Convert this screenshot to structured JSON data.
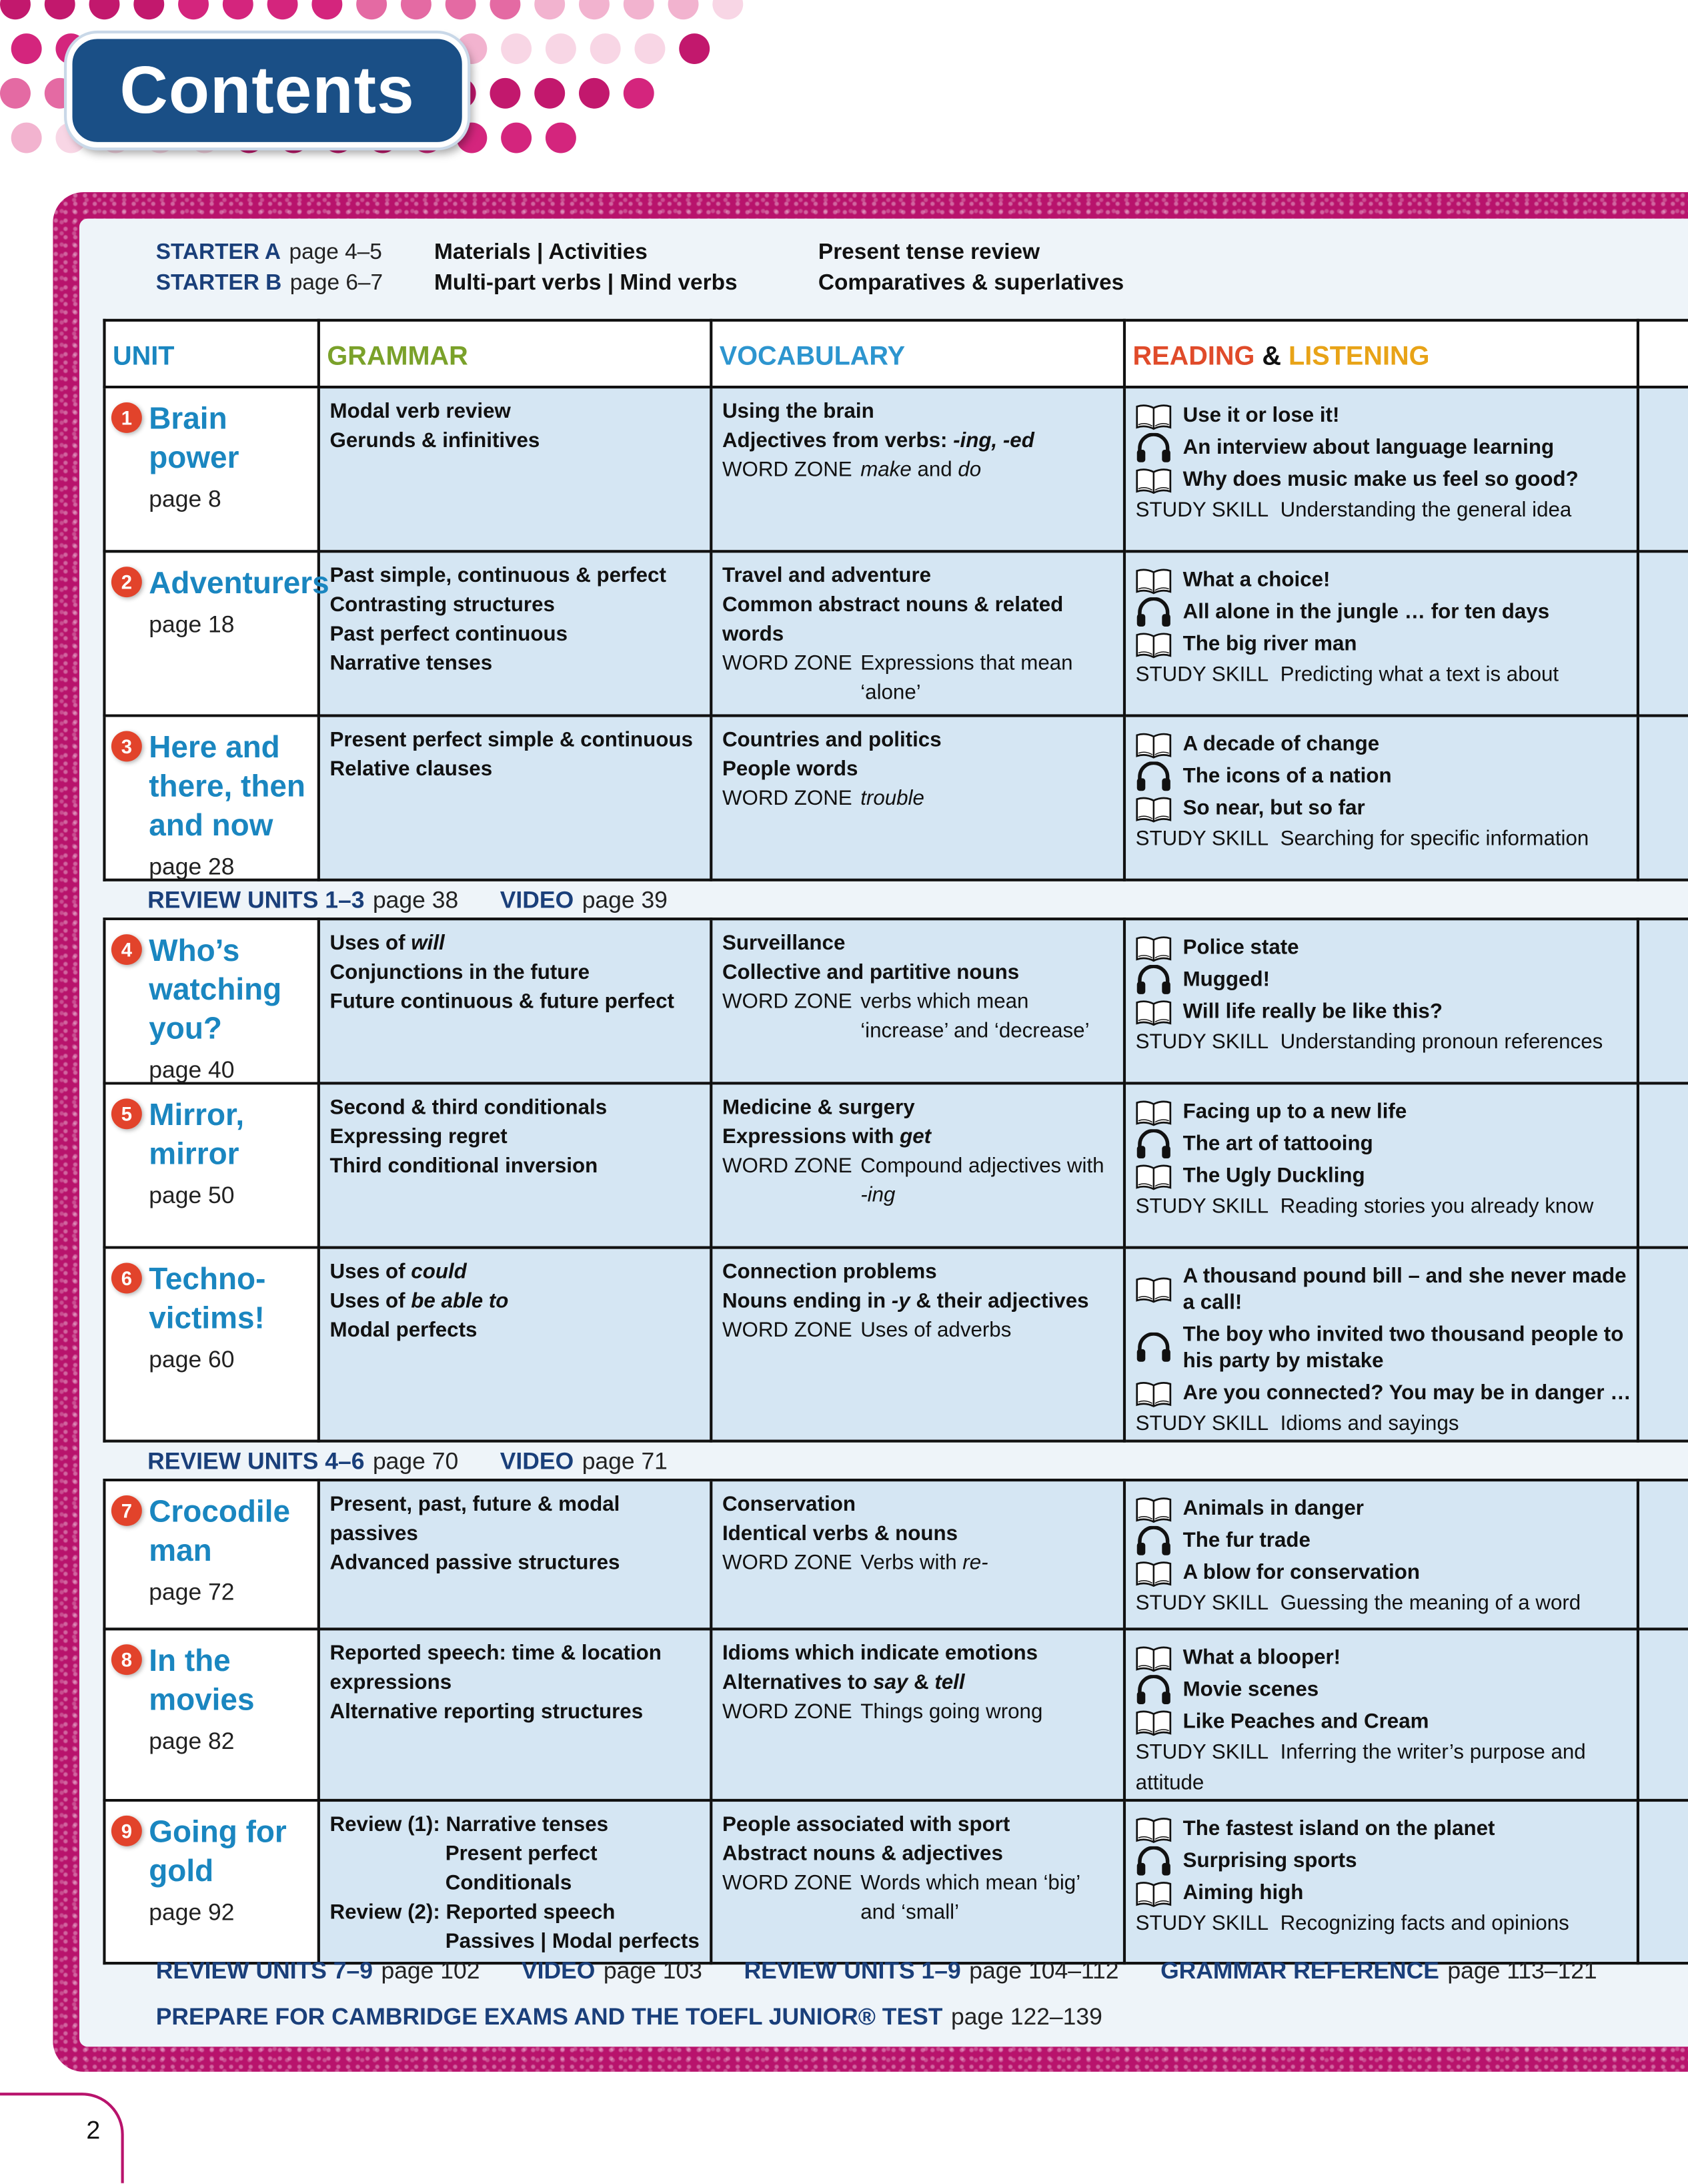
{
  "title": "Contents",
  "colors": {
    "frame": "#b8136c",
    "unit_title": "#1a86c0",
    "review": "#1a3f7a",
    "cell_bg": "#d5e6f3",
    "number_badge": "#e2432b"
  },
  "starters": [
    {
      "label": "STARTER A",
      "page": "page 4–5",
      "vocab": "Materials | Activities",
      "grammar": "Present tense review"
    },
    {
      "label": "STARTER B",
      "page": "page 6–7",
      "vocab": "Multi-part verbs | Mind verbs",
      "grammar": "Comparatives & superlatives"
    }
  ],
  "headers": {
    "unit": "UNIT",
    "grammar": "GRAMMAR",
    "vocabulary": "VOCABULARY",
    "reading": "READING",
    "amp": "&",
    "listening": "LISTENING"
  },
  "units": [
    {
      "num": "1",
      "title": "Brain power",
      "page": "page 8",
      "grammar": [
        [
          {
            "t": "Modal verb review"
          }
        ],
        [
          {
            "t": "Gerunds & infinitives"
          }
        ]
      ],
      "vocab": [
        [
          {
            "t": "Using the brain"
          }
        ],
        [
          {
            "t": "Adjectives from verbs: "
          },
          {
            "t": "-ing, -ed",
            "i": true
          }
        ]
      ],
      "word_zone": [
        {
          "t": "make",
          "i": true
        },
        {
          "t": " and "
        },
        {
          "t": "do",
          "i": true
        }
      ],
      "reading": [
        {
          "icon": "book",
          "text": "Use it or lose it!"
        },
        {
          "icon": "headphones",
          "text": "An interview about language learning"
        },
        {
          "icon": "book",
          "text": "Why does music make us feel so good?"
        }
      ],
      "study_skill": "Understanding the general idea"
    },
    {
      "num": "2",
      "title": "Adventurers",
      "page": "page 18",
      "grammar": [
        [
          {
            "t": "Past simple, continuous & perfect"
          }
        ],
        [
          {
            "t": "Contrasting structures"
          }
        ],
        [
          {
            "t": "Past perfect continuous"
          }
        ],
        [
          {
            "t": "Narrative tenses"
          }
        ]
      ],
      "vocab": [
        [
          {
            "t": "Travel and adventure"
          }
        ],
        [
          {
            "t": "Common abstract nouns & related words"
          }
        ]
      ],
      "word_zone": [
        {
          "t": "Expressions that mean ‘alone’"
        }
      ],
      "reading": [
        {
          "icon": "book",
          "text": "What a choice!"
        },
        {
          "icon": "headphones",
          "text": "All alone in the jungle … for ten days"
        },
        {
          "icon": "book",
          "text": "The big river man"
        }
      ],
      "study_skill": "Predicting what a text is about"
    },
    {
      "num": "3",
      "title": "Here and there, then and now",
      "page": "page 28",
      "grammar": [
        [
          {
            "t": "Present perfect simple & continuous"
          }
        ],
        [
          {
            "t": "Relative clauses"
          }
        ]
      ],
      "vocab": [
        [
          {
            "t": "Countries and politics"
          }
        ],
        [
          {
            "t": "People words"
          }
        ]
      ],
      "word_zone": [
        {
          "t": "trouble",
          "i": true
        }
      ],
      "reading": [
        {
          "icon": "book",
          "text": "A decade of change"
        },
        {
          "icon": "headphones",
          "text": "The icons of a nation"
        },
        {
          "icon": "book",
          "text": "So near, but so far"
        }
      ],
      "study_skill": "Searching for specific information"
    },
    {
      "review": true,
      "label": "REVIEW UNITS 1–3",
      "page": "page 38",
      "video": "VIDEO",
      "video_page": "page 39"
    },
    {
      "num": "4",
      "title": "Who’s watching you?",
      "page": "page 40",
      "grammar": [
        [
          {
            "t": "Uses of "
          },
          {
            "t": "will",
            "i": true
          }
        ],
        [
          {
            "t": "Conjunctions in the future"
          }
        ],
        [
          {
            "t": "Future continuous & future perfect"
          }
        ]
      ],
      "vocab": [
        [
          {
            "t": "Surveillance"
          }
        ],
        [
          {
            "t": "Collective and partitive nouns"
          }
        ]
      ],
      "word_zone": [
        {
          "t": "verbs which mean ‘increase’ and ‘decrease’"
        }
      ],
      "reading": [
        {
          "icon": "book",
          "text": "Police state"
        },
        {
          "icon": "headphones",
          "text": "Mugged!"
        },
        {
          "icon": "book",
          "text": "Will life really be like this?"
        }
      ],
      "study_skill": "Understanding pronoun references"
    },
    {
      "num": "5",
      "title": "Mirror, mirror",
      "page": "page 50",
      "grammar": [
        [
          {
            "t": "Second & third conditionals"
          }
        ],
        [
          {
            "t": "Expressing regret"
          }
        ],
        [
          {
            "t": "Third conditional inversion"
          }
        ]
      ],
      "vocab": [
        [
          {
            "t": "Medicine & surgery"
          }
        ],
        [
          {
            "t": "Expressions with "
          },
          {
            "t": "get",
            "i": true
          }
        ]
      ],
      "word_zone": [
        {
          "t": "Compound adjectives with "
        },
        {
          "t": "-ing",
          "i": true
        }
      ],
      "reading": [
        {
          "icon": "book",
          "text": "Facing up to a new life"
        },
        {
          "icon": "headphones",
          "text": "The art of tattooing"
        },
        {
          "icon": "book",
          "text": "The Ugly Duckling"
        }
      ],
      "study_skill": "Reading stories you already know"
    },
    {
      "num": "6",
      "title": "Techno-victims!",
      "page": "page 60",
      "grammar": [
        [
          {
            "t": "Uses of "
          },
          {
            "t": "could",
            "i": true
          }
        ],
        [
          {
            "t": "Uses of "
          },
          {
            "t": "be able to",
            "i": true
          }
        ],
        [
          {
            "t": "Modal perfects"
          }
        ]
      ],
      "vocab": [
        [
          {
            "t": "Connection problems"
          }
        ],
        [
          {
            "t": "Nouns ending in "
          },
          {
            "t": "-y",
            "i": true
          },
          {
            "t": " & their adjectives"
          }
        ]
      ],
      "word_zone": [
        {
          "t": "Uses of adverbs"
        }
      ],
      "reading": [
        {
          "icon": "book",
          "text": "A thousand pound bill – and she never made a call!"
        },
        {
          "icon": "headphones",
          "text": "The boy who invited two thousand people to his party by mistake"
        },
        {
          "icon": "book",
          "text": "Are you connected? You may be in danger …"
        }
      ],
      "study_skill": "Idioms and sayings"
    },
    {
      "review": true,
      "label": "REVIEW UNITS 4–6",
      "page": "page 70",
      "video": "VIDEO",
      "video_page": "page 71"
    },
    {
      "num": "7",
      "title": "Crocodile man",
      "page": "page 72",
      "grammar": [
        [
          {
            "t": "Present, past, future & modal passives"
          }
        ],
        [
          {
            "t": "Advanced passive structures"
          }
        ]
      ],
      "vocab": [
        [
          {
            "t": "Conservation"
          }
        ],
        [
          {
            "t": "Identical verbs & nouns"
          }
        ]
      ],
      "word_zone": [
        {
          "t": "Verbs with "
        },
        {
          "t": "re-",
          "i": true
        }
      ],
      "reading": [
        {
          "icon": "book",
          "text": "Animals in danger"
        },
        {
          "icon": "headphones",
          "text": "The fur trade"
        },
        {
          "icon": "book",
          "text": "A blow for conservation"
        }
      ],
      "study_skill": "Guessing the meaning of a word"
    },
    {
      "num": "8",
      "title": "In the movies",
      "page": "page 82",
      "grammar": [
        [
          {
            "t": "Reported speech: time & location expressions"
          }
        ],
        [
          {
            "t": "Alternative reporting structures"
          }
        ]
      ],
      "vocab": [
        [
          {
            "t": "Idioms which indicate emotions"
          }
        ],
        [
          {
            "t": "Alternatives to "
          },
          {
            "t": "say",
            "i": true
          },
          {
            "t": " & "
          },
          {
            "t": "tell",
            "i": true
          }
        ]
      ],
      "word_zone": [
        {
          "t": "Things going wrong"
        }
      ],
      "reading": [
        {
          "icon": "book",
          "text": "What a blooper!"
        },
        {
          "icon": "headphones",
          "text": "Movie scenes"
        },
        {
          "icon": "book",
          "text": "Like Peaches and Cream"
        }
      ],
      "study_skill": "Inferring the writer’s purpose and attitude"
    },
    {
      "num": "9",
      "title": "Going for gold",
      "page": "page 92",
      "grammar": [
        [
          {
            "t": "Review (1): Narrative tenses"
          }
        ],
        [
          {
            "t": "Present perfect",
            "ind": true
          }
        ],
        [
          {
            "t": "Conditionals",
            "ind": true
          }
        ],
        [
          {
            "t": "Review (2): Reported speech"
          }
        ],
        [
          {
            "t": "Passives | Modal perfects",
            "ind": true
          }
        ]
      ],
      "vocab": [
        [
          {
            "t": "People associated with sport"
          }
        ],
        [
          {
            "t": "Abstract nouns & adjectives"
          }
        ]
      ],
      "word_zone": [
        {
          "t": "Words which mean ‘big’ and ‘small’"
        }
      ],
      "reading": [
        {
          "icon": "book",
          "text": "The fastest island on the planet"
        },
        {
          "icon": "headphones",
          "text": "Surprising sports"
        },
        {
          "icon": "book",
          "text": "Aiming high"
        }
      ],
      "study_skill": "Recognizing facts and opinions"
    }
  ],
  "word_zone_label": "WORD ZONE",
  "study_skill_label": "STUDY SKILL",
  "footer": {
    "items": [
      {
        "label": "REVIEW UNITS 7–9",
        "page": "page 102"
      },
      {
        "label": "VIDEO",
        "page": "page 103"
      },
      {
        "label": "REVIEW UNITS 1–9",
        "page": "page 104–112"
      },
      {
        "label": "GRAMMAR REFERENCE",
        "page": "page 113–121"
      }
    ],
    "prepare": {
      "label": "PREPARE FOR CAMBRIDGE EXAMS AND THE TOEFL JUNIOR® TEST",
      "page": "page 122–139"
    }
  },
  "page_number": "2"
}
